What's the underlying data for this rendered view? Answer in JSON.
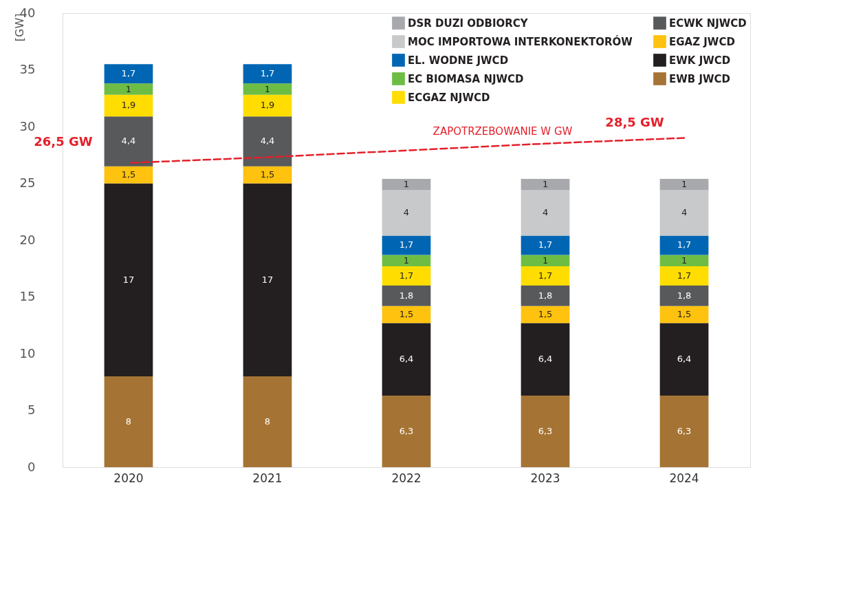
{
  "chart_data": {
    "type": "bar",
    "stacked": true,
    "ylabel": "[GW]",
    "categories": [
      "2020",
      "2021",
      "2022",
      "2023",
      "2024"
    ],
    "ylim": [
      0,
      40
    ],
    "yticks": [
      0,
      5,
      10,
      15,
      20,
      25,
      30,
      35,
      40
    ],
    "grid": false,
    "legend": "top right",
    "series": [
      {
        "name": "EWB JWCD",
        "color": "#a57434",
        "values": [
          8,
          8,
          6.3,
          6.3,
          6.3
        ],
        "value_labels": [
          "8",
          "8",
          "6,3",
          "6,3",
          "6,3"
        ]
      },
      {
        "name": "EWK JWCD",
        "color": "#231f20",
        "values": [
          17,
          17,
          6.4,
          6.4,
          6.4
        ],
        "value_labels": [
          "17",
          "17",
          "6,4",
          "6,4",
          "6,4"
        ]
      },
      {
        "name": "EGAZ JWCD",
        "color": "#ffc20e",
        "values": [
          1.5,
          1.5,
          1.5,
          1.5,
          1.5
        ],
        "value_labels": [
          "1,5",
          "1,5",
          "1,5",
          "1,5",
          "1,5"
        ]
      },
      {
        "name": "ECWK NJWCD",
        "color": "#58595b",
        "values": [
          4.4,
          4.4,
          1.8,
          1.8,
          1.8
        ],
        "value_labels": [
          "4,4",
          "4,4",
          "1,8",
          "1,8",
          "1,8"
        ]
      },
      {
        "name": "ECGAZ NJWCD",
        "color": "#ffdd00",
        "values": [
          1.9,
          1.9,
          1.7,
          1.7,
          1.7
        ],
        "value_labels": [
          "1,9",
          "1,9",
          "1,7",
          "1,7",
          "1,7"
        ]
      },
      {
        "name": "EC BIOMASA NJWCD",
        "color": "#6dbd45",
        "values": [
          1,
          1,
          1,
          1,
          1
        ],
        "value_labels": [
          "1",
          "1",
          "1",
          "1",
          "1"
        ]
      },
      {
        "name": "EL. WODNE JWCD",
        "color": "#0066b3",
        "values": [
          1.7,
          1.7,
          1.7,
          1.7,
          1.7
        ],
        "value_labels": [
          "1,7",
          "1,7",
          "1,7",
          "1,7",
          "1,7"
        ]
      },
      {
        "name": "MOC IMPORTOWA INTERKONEKTORÓW",
        "color": "#c8c9cb",
        "values": [
          null,
          null,
          4,
          4,
          4
        ],
        "value_labels": [
          null,
          null,
          "4",
          "4",
          "4"
        ]
      },
      {
        "name": "DSR DUZI ODBIORCY",
        "color": "#a7a9ac",
        "values": [
          null,
          null,
          1,
          1,
          1
        ],
        "value_labels": [
          null,
          null,
          "1",
          "1",
          "1"
        ]
      },
      {
        "name": "ZAPOTRZEBOWANIE W GW",
        "type": "line",
        "line_style": "dashed",
        "color": "#e4202a",
        "values": [
          26.8,
          27.3,
          27.9,
          28.5,
          29.0
        ]
      }
    ],
    "annotations": [
      "26,5 GW",
      "28,5 GW"
    ]
  }
}
